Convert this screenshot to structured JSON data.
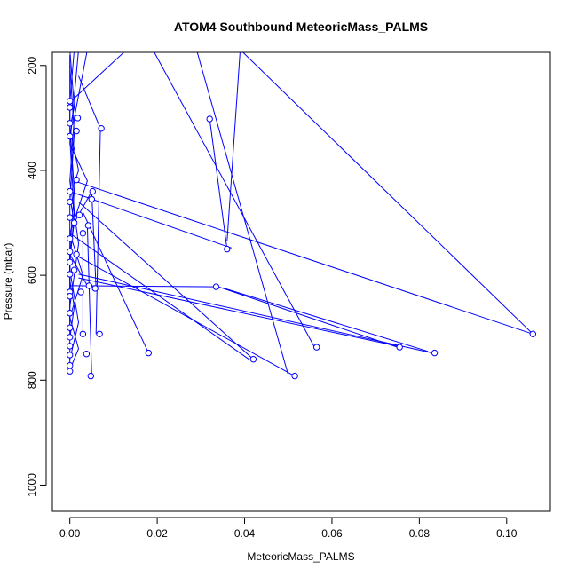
{
  "chart_data": {
    "type": "line",
    "title": "ATOM4 Southbound MeteoricMass_PALMS",
    "xlabel": "MeteoricMass_PALMS",
    "ylabel": "Pressure (mbar)",
    "xlim": [
      -0.004,
      0.11
    ],
    "ylim": [
      1050,
      175
    ],
    "y_reversed": true,
    "x_ticks": [
      0.0,
      0.02,
      0.04,
      0.06,
      0.08,
      0.1
    ],
    "x_tick_labels": [
      "0.00",
      "0.02",
      "0.04",
      "0.06",
      "0.08",
      "0.10"
    ],
    "y_ticks": [
      200,
      400,
      600,
      800,
      1000
    ],
    "y_tick_labels": [
      "200",
      "400",
      "600",
      "800",
      "1000"
    ],
    "color": "#0000ff",
    "marker": "open-circle",
    "lines": [
      {
        "x": [
          0.0,
          0.001,
          0.0,
          0.002,
          0.0,
          0.001,
          0.0,
          0.0,
          0.001,
          0.0
        ],
        "y": [
          170,
          280,
          320,
          400,
          450,
          500,
          560,
          610,
          660,
          720
        ]
      },
      {
        "x": [
          0.002,
          0.0,
          0.004,
          0.0,
          0.003,
          0.0,
          0.002,
          0.0
        ],
        "y": [
          170,
          350,
          420,
          520,
          600,
          680,
          740,
          780
        ]
      },
      {
        "x": [
          0.001,
          0.0,
          0.0,
          0.001,
          0.0,
          0.0
        ],
        "y": [
          170,
          270,
          340,
          480,
          580,
          770
        ]
      },
      {
        "x": [
          0.004,
          0.001,
          0.0,
          0.002,
          0.0
        ],
        "y": [
          170,
          300,
          420,
          540,
          660
        ]
      },
      {
        "x": [
          0.0,
          0.001,
          0.0,
          0.0,
          0.002,
          0.0
        ],
        "y": [
          200,
          330,
          460,
          590,
          690,
          760
        ]
      },
      {
        "x": [
          0.0,
          0.0,
          0.001,
          0.0,
          0.0
        ],
        "y": [
          180,
          310,
          440,
          550,
          700
        ]
      }
    ],
    "segments": [
      {
        "x": [
          0.013,
          0.0
        ],
        "y": [
          170,
          270
        ]
      },
      {
        "x": [
          0.002,
          0.007
        ],
        "y": [
          220,
          320
        ]
      },
      {
        "x": [
          0.007,
          0.006
        ],
        "y": [
          320,
          712
        ]
      },
      {
        "x": [
          0.019,
          0.056
        ],
        "y": [
          170,
          737
        ]
      },
      {
        "x": [
          0.029,
          0.05
        ],
        "y": [
          170,
          790
        ]
      },
      {
        "x": [
          0.039,
          0.106
        ],
        "y": [
          170,
          712
        ]
      },
      {
        "x": [
          0.032,
          0.036
        ],
        "y": [
          302,
          550
        ]
      },
      {
        "x": [
          0.039,
          0.036
        ],
        "y": [
          170,
          535
        ]
      },
      {
        "x": [
          0.0,
          0.037
        ],
        "y": [
          440,
          548
        ]
      },
      {
        "x": [
          0.001,
          0.106
        ],
        "y": [
          420,
          712
        ]
      },
      {
        "x": [
          0.002,
          0.042
        ],
        "y": [
          460,
          760
        ]
      },
      {
        "x": [
          0.003,
          0.018
        ],
        "y": [
          480,
          748
        ]
      },
      {
        "x": [
          0.0,
          0.041
        ],
        "y": [
          520,
          760
        ]
      },
      {
        "x": [
          0.001,
          0.051
        ],
        "y": [
          560,
          790
        ]
      },
      {
        "x": [
          0.0,
          0.034
        ],
        "y": [
          620,
          622
        ]
      },
      {
        "x": [
          0.035,
          0.082
        ],
        "y": [
          624,
          745
        ]
      },
      {
        "x": [
          0.034,
          0.075
        ],
        "y": [
          622,
          737
        ]
      },
      {
        "x": [
          0.002,
          0.083
        ],
        "y": [
          598,
          748
        ]
      },
      {
        "x": [
          0.002,
          0.075
        ],
        "y": [
          605,
          735
        ]
      },
      {
        "x": [
          0.001,
          0.005
        ],
        "y": [
          500,
          440
        ]
      },
      {
        "x": [
          0.005,
          0.006
        ],
        "y": [
          440,
          625
        ]
      },
      {
        "x": [
          0.004,
          0.005
        ],
        "y": [
          505,
          790
        ]
      },
      {
        "x": [
          0.003,
          0.003
        ],
        "y": [
          520,
          710
        ]
      },
      {
        "x": [
          0.0,
          0.004
        ],
        "y": [
          560,
          620
        ]
      }
    ],
    "points": [
      {
        "x": 0.106,
        "y": 712
      },
      {
        "x": 0.0835,
        "y": 748
      },
      {
        "x": 0.0755,
        "y": 737
      },
      {
        "x": 0.0565,
        "y": 737
      },
      {
        "x": 0.0515,
        "y": 792
      },
      {
        "x": 0.042,
        "y": 760
      },
      {
        "x": 0.036,
        "y": 550
      },
      {
        "x": 0.0335,
        "y": 622
      },
      {
        "x": 0.032,
        "y": 302
      },
      {
        "x": 0.018,
        "y": 748
      },
      {
        "x": 0.0072,
        "y": 320
      },
      {
        "x": 0.0068,
        "y": 712
      },
      {
        "x": 0.0058,
        "y": 625
      },
      {
        "x": 0.0052,
        "y": 440
      },
      {
        "x": 0.005,
        "y": 455
      },
      {
        "x": 0.0048,
        "y": 792
      },
      {
        "x": 0.0042,
        "y": 505
      },
      {
        "x": 0.0044,
        "y": 620
      },
      {
        "x": 0.0038,
        "y": 750
      },
      {
        "x": 0.003,
        "y": 520
      },
      {
        "x": 0.003,
        "y": 712
      },
      {
        "x": 0.0025,
        "y": 632
      },
      {
        "x": 0.0022,
        "y": 485
      },
      {
        "x": 0.0018,
        "y": 300
      },
      {
        "x": 0.0015,
        "y": 418
      },
      {
        "x": 0.0015,
        "y": 325
      },
      {
        "x": 0.0015,
        "y": 560
      },
      {
        "x": 0.001,
        "y": 500
      },
      {
        "x": 0.001,
        "y": 590
      },
      {
        "x": 0.0,
        "y": 268
      },
      {
        "x": 0.0,
        "y": 280
      },
      {
        "x": 0.0,
        "y": 310
      },
      {
        "x": 0.0,
        "y": 335
      },
      {
        "x": 0.0,
        "y": 440
      },
      {
        "x": 0.0,
        "y": 460
      },
      {
        "x": 0.0,
        "y": 490
      },
      {
        "x": 0.0,
        "y": 530
      },
      {
        "x": 0.0,
        "y": 555
      },
      {
        "x": 0.0,
        "y": 575
      },
      {
        "x": 0.0,
        "y": 598
      },
      {
        "x": 0.0,
        "y": 632
      },
      {
        "x": 0.0,
        "y": 640
      },
      {
        "x": 0.0,
        "y": 672
      },
      {
        "x": 0.0,
        "y": 700
      },
      {
        "x": 0.0,
        "y": 718
      },
      {
        "x": 0.0,
        "y": 735
      },
      {
        "x": 0.0,
        "y": 752
      },
      {
        "x": 0.0,
        "y": 772
      },
      {
        "x": 0.0,
        "y": 783
      }
    ]
  }
}
